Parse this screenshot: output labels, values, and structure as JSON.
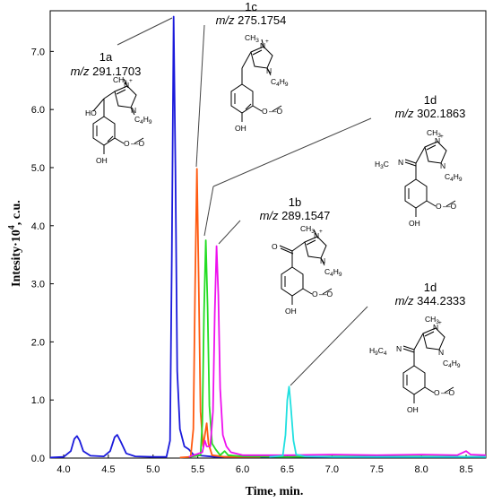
{
  "chart_data": {
    "type": "line",
    "xlabel": "Time, min.",
    "ylabel_main": "Intesity·10",
    "ylabel_sup": "4",
    "ylabel_unit": ", c.u.",
    "xlim": [
      3.85,
      8.72
    ],
    "ylim": [
      0,
      7.7
    ],
    "x_ticks": [
      "4.0",
      "4.5",
      "5.0",
      "5.5",
      "6.0",
      "6.5",
      "7.0",
      "7.5",
      "8.0",
      "8.5"
    ],
    "y_ticks": [
      "0.0",
      "1.0",
      "2.0",
      "3.0",
      "4.0",
      "5.0",
      "6.0",
      "7.0"
    ],
    "series": [
      {
        "color": "#1a1adb",
        "points": [
          [
            3.85,
            0.01
          ],
          [
            4.0,
            0.02
          ],
          [
            4.08,
            0.12
          ],
          [
            4.12,
            0.33
          ],
          [
            4.15,
            0.38
          ],
          [
            4.18,
            0.3
          ],
          [
            4.22,
            0.12
          ],
          [
            4.3,
            0.04
          ],
          [
            4.45,
            0.03
          ],
          [
            4.52,
            0.12
          ],
          [
            4.57,
            0.36
          ],
          [
            4.6,
            0.4
          ],
          [
            4.64,
            0.28
          ],
          [
            4.7,
            0.08
          ],
          [
            4.8,
            0.03
          ],
          [
            5.0,
            0.02
          ],
          [
            5.15,
            0.02
          ],
          [
            5.19,
            0.3
          ],
          [
            5.21,
            3.5
          ],
          [
            5.23,
            7.6
          ],
          [
            5.25,
            5.0
          ],
          [
            5.27,
            1.5
          ],
          [
            5.3,
            0.5
          ],
          [
            5.35,
            0.2
          ],
          [
            5.4,
            0.15
          ],
          [
            5.45,
            0.06
          ],
          [
            5.55,
            0.04
          ],
          [
            5.7,
            0.02
          ],
          [
            6.0,
            0.02
          ],
          [
            7.0,
            0.02
          ],
          [
            8.0,
            0.02
          ],
          [
            8.72,
            0.02
          ]
        ]
      },
      {
        "color": "#ff5a10",
        "points": [
          [
            5.3,
            0.01
          ],
          [
            5.42,
            0.02
          ],
          [
            5.45,
            0.5
          ],
          [
            5.47,
            3.0
          ],
          [
            5.49,
            4.98
          ],
          [
            5.51,
            3.0
          ],
          [
            5.53,
            0.8
          ],
          [
            5.56,
            0.2
          ],
          [
            5.6,
            0.6
          ],
          [
            5.62,
            0.25
          ],
          [
            5.66,
            0.05
          ],
          [
            5.8,
            0.02
          ],
          [
            6.2,
            0.02
          ]
        ]
      },
      {
        "color": "#22dd22",
        "points": [
          [
            5.4,
            0.02
          ],
          [
            5.53,
            0.05
          ],
          [
            5.55,
            0.6
          ],
          [
            5.57,
            2.5
          ],
          [
            5.59,
            3.75
          ],
          [
            5.61,
            2.6
          ],
          [
            5.63,
            0.9
          ],
          [
            5.66,
            0.25
          ],
          [
            5.7,
            0.15
          ],
          [
            5.75,
            0.05
          ],
          [
            5.8,
            0.12
          ],
          [
            5.84,
            0.05
          ],
          [
            6.0,
            0.03
          ],
          [
            6.5,
            0.02
          ],
          [
            7.0,
            0.03
          ],
          [
            8.0,
            0.03
          ],
          [
            8.72,
            0.02
          ]
        ]
      },
      {
        "color": "#ee10ee",
        "points": [
          [
            5.4,
            0.02
          ],
          [
            5.55,
            0.1
          ],
          [
            5.58,
            0.3
          ],
          [
            5.6,
            0.2
          ],
          [
            5.64,
            0.2
          ],
          [
            5.67,
            0.8
          ],
          [
            5.69,
            2.5
          ],
          [
            5.71,
            3.65
          ],
          [
            5.73,
            2.8
          ],
          [
            5.75,
            1.2
          ],
          [
            5.78,
            0.4
          ],
          [
            5.82,
            0.2
          ],
          [
            5.87,
            0.1
          ],
          [
            6.0,
            0.05
          ],
          [
            6.5,
            0.05
          ],
          [
            7.0,
            0.06
          ],
          [
            7.5,
            0.05
          ],
          [
            8.0,
            0.06
          ],
          [
            8.4,
            0.05
          ],
          [
            8.5,
            0.12
          ],
          [
            8.55,
            0.06
          ],
          [
            8.72,
            0.05
          ]
        ]
      },
      {
        "color": "#20e0e0",
        "points": [
          [
            6.3,
            0.02
          ],
          [
            6.45,
            0.04
          ],
          [
            6.48,
            0.4
          ],
          [
            6.5,
            1.0
          ],
          [
            6.52,
            1.23
          ],
          [
            6.54,
            0.9
          ],
          [
            6.57,
            0.3
          ],
          [
            6.6,
            0.06
          ],
          [
            6.7,
            0.03
          ],
          [
            7.0,
            0.02
          ],
          [
            7.5,
            0.02
          ],
          [
            8.0,
            0.02
          ],
          [
            8.72,
            0.02
          ]
        ]
      }
    ]
  },
  "annotations": [
    {
      "name": "1a",
      "mz": "m/z",
      "value": "291.1703"
    },
    {
      "name": "1c",
      "mz": "m/z",
      "value": "275.1754"
    },
    {
      "name": "1d",
      "mz": "m/z",
      "value": "302.1863"
    },
    {
      "name": "1b",
      "mz": "m/z",
      "value": "289.1547"
    },
    {
      "name": "1d",
      "mz": "m/z",
      "value": "344.2333"
    }
  ],
  "chem_labels": {
    "n": "N",
    "nplus": "N",
    "plus": "+",
    "ch3": "CH",
    "three": "3",
    "c4h9": "C",
    "four": "4",
    "h9": "H",
    "nine": "9",
    "ho": "HO",
    "oh": "OH",
    "o": "O",
    "och3": "—O",
    "h3c": "H",
    "h3c_c": "C",
    "h9c4": "H",
    "h9c4_c": "C"
  }
}
